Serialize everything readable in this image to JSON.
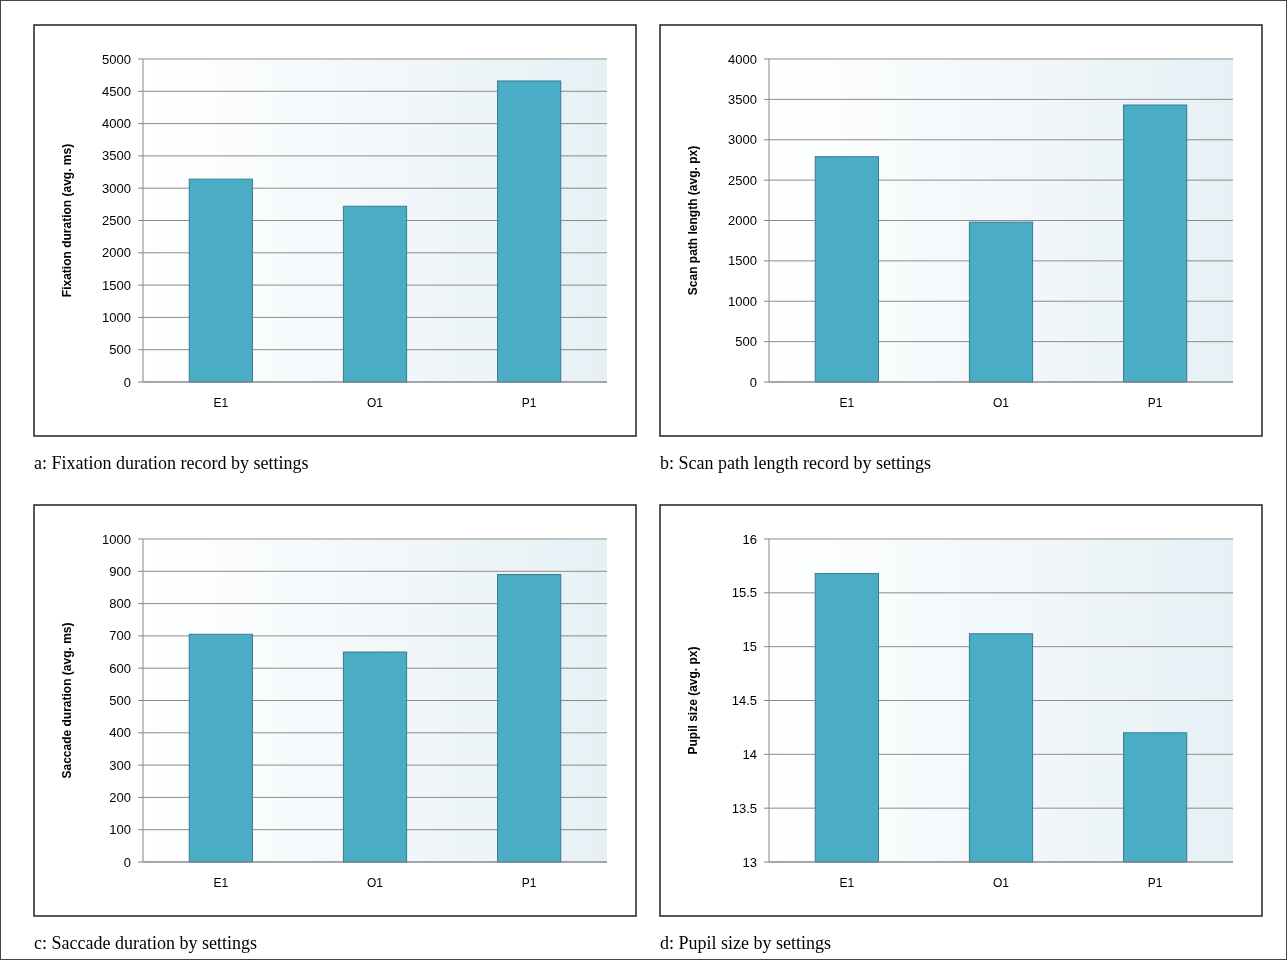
{
  "chart_data": [
    {
      "type": "bar",
      "categories": [
        "E1",
        "O1",
        "P1"
      ],
      "values": [
        3140,
        2720,
        4660
      ],
      "color": "#4bacc6",
      "ylabel": "Fixation duration (avg. ms)",
      "ylim": [
        0,
        5000
      ],
      "yticks": [
        0,
        500,
        1000,
        1500,
        2000,
        2500,
        3000,
        3500,
        4000,
        4500,
        5000
      ],
      "grid": "y",
      "annotations": [
        "a: Fixation duration record by settings"
      ]
    },
    {
      "type": "bar",
      "categories": [
        "E1",
        "O1",
        "P1"
      ],
      "values": [
        2790,
        1980,
        3430
      ],
      "color": "#4bacc6",
      "ylabel": "Scan path length (avg. px)",
      "ylim": [
        0,
        4000
      ],
      "yticks": [
        0,
        500,
        1000,
        1500,
        2000,
        2500,
        3000,
        3500,
        4000
      ],
      "grid": "y",
      "annotations": [
        "b: Scan path length record by settings"
      ]
    },
    {
      "type": "bar",
      "categories": [
        "E1",
        "O1",
        "P1"
      ],
      "values": [
        705,
        650,
        890
      ],
      "color": "#4bacc6",
      "ylabel": "Saccade duration (avg. ms)",
      "ylim": [
        0,
        1000
      ],
      "yticks": [
        0,
        100,
        200,
        300,
        400,
        500,
        600,
        700,
        800,
        900,
        1000
      ],
      "grid": "y",
      "annotations": [
        "c: Saccade duration by settings"
      ]
    },
    {
      "type": "bar",
      "categories": [
        "E1",
        "O1",
        "P1"
      ],
      "values": [
        15.68,
        15.12,
        14.2
      ],
      "color": "#4bacc6",
      "ylabel": "Pupil size (avg. px)",
      "ylim": [
        13,
        16
      ],
      "yticks": [
        13,
        13.5,
        14,
        14.5,
        15,
        15.5,
        16
      ],
      "grid": "y",
      "annotations": [
        "d: Pupil size by settings"
      ]
    }
  ]
}
